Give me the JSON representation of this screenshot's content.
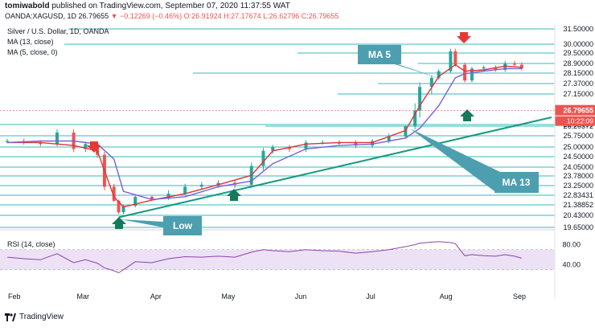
{
  "header": {
    "publisher": "tomiwabold",
    "published_text": "published on TradingView.com, September 07, 2020 11:37:55 WAT",
    "symbol": "OANDA:XAGUSD, 1D",
    "last": "26.79655",
    "change": "▼ −0.12269 (−0.46%)",
    "ohlc": "O:26.91924 H:27.17674 L:26.62796 C:26.79655"
  },
  "legend": {
    "title": "Silver / U.S. Dollar, 1D, OANDA",
    "ma13": "MA (13, close)",
    "ma5": "MA (5, close, 0)",
    "rsi": "RSI (14, close)"
  },
  "annotations": {
    "ma5": "MA 5",
    "ma13": "MA 13",
    "low": "Low"
  },
  "footer": {
    "brand": "TradingView"
  },
  "colors": {
    "grid_line": "#5ec7c9",
    "trend_line": "#159a7e",
    "callout": "#4d9fb0",
    "callout_text": "#ffffff",
    "up_candle": "#26a69a",
    "down_candle": "#ef5350",
    "ma5": "#e0323b",
    "ma13": "#7b5fd6",
    "rsi_line": "#8e44ad",
    "rsi_band": "#ece1f5",
    "price_tag": "#ef5350",
    "arrow_up": "#157a5c",
    "arrow_down": "#e53935"
  },
  "chart_data": {
    "type": "line",
    "title": "Silver / U.S. Dollar, 1D, OANDA",
    "xlabel": "",
    "ylabel": "",
    "x_ticks": [
      "Feb",
      "Mar",
      "Apr",
      "May",
      "Jun",
      "Jul",
      "Aug",
      "Sep"
    ],
    "ylim": [
      19.0,
      31.8
    ],
    "y_ticks": [
      "31.50000",
      "30.00000",
      "29.50000",
      "28.90000",
      "28.15000",
      "27.37000",
      "27.15000",
      "26.50000",
      "26.20372",
      "25.75000",
      "25.00000",
      "24.50000",
      "24.05000",
      "23.78000",
      "23.25000",
      "22.83431",
      "21.38852",
      "20.43000",
      "19.65000"
    ],
    "price_tag": "26.79655",
    "time_tag": "10:22:09",
    "series": [
      {
        "name": "Silver / U.S. Dollar",
        "x": [
          "2020-01-31",
          "2020-02-07",
          "2020-02-14",
          "2020-02-21",
          "2020-02-28",
          "2020-03-04",
          "2020-03-09",
          "2020-03-12",
          "2020-03-16",
          "2020-03-18",
          "2020-03-20",
          "2020-03-25",
          "2020-04-01",
          "2020-04-08",
          "2020-04-15",
          "2020-04-22",
          "2020-04-29",
          "2020-05-06",
          "2020-05-13",
          "2020-05-18",
          "2020-05-22",
          "2020-05-29",
          "2020-06-05",
          "2020-06-12",
          "2020-06-19",
          "2020-06-26",
          "2020-07-03",
          "2020-07-10",
          "2020-07-17",
          "2020-07-21",
          "2020-07-23",
          "2020-07-28",
          "2020-07-31",
          "2020-08-05",
          "2020-08-07",
          "2020-08-11",
          "2020-08-14",
          "2020-08-19",
          "2020-08-24",
          "2020-08-28",
          "2020-09-01",
          "2020-09-04"
        ],
        "values": [
          25.4,
          25.3,
          25.2,
          25.9,
          24.9,
          25.2,
          24.6,
          23.2,
          22.0,
          20.7,
          21.3,
          22.6,
          22.3,
          22.9,
          23.2,
          23.3,
          23.4,
          23.3,
          24.1,
          24.8,
          25.0,
          24.9,
          25.3,
          25.3,
          25.3,
          25.1,
          25.4,
          25.7,
          26.2,
          26.8,
          27.3,
          27.8,
          28.3,
          29.6,
          28.8,
          27.6,
          28.5,
          28.6,
          28.4,
          28.9,
          28.8,
          28.5
        ]
      },
      {
        "name": "MA (5, close, 0)",
        "x": [
          "2020-01-31",
          "2020-02-14",
          "2020-02-28",
          "2020-03-09",
          "2020-03-16",
          "2020-03-20",
          "2020-04-01",
          "2020-04-15",
          "2020-04-29",
          "2020-05-13",
          "2020-05-22",
          "2020-06-05",
          "2020-06-19",
          "2020-07-03",
          "2020-07-17",
          "2020-07-23",
          "2020-07-31",
          "2020-08-07",
          "2020-08-11",
          "2020-08-19",
          "2020-08-28",
          "2020-09-04"
        ],
        "values": [
          25.3,
          25.3,
          25.1,
          24.8,
          22.6,
          21.2,
          22.1,
          22.9,
          23.3,
          23.8,
          24.8,
          25.2,
          25.3,
          25.3,
          26.0,
          26.9,
          27.9,
          28.8,
          28.3,
          28.4,
          28.7,
          28.6
        ]
      },
      {
        "name": "MA (13, close)",
        "x": [
          "2020-01-31",
          "2020-02-14",
          "2020-02-28",
          "2020-03-09",
          "2020-03-16",
          "2020-03-20",
          "2020-04-01",
          "2020-04-15",
          "2020-04-29",
          "2020-05-13",
          "2020-05-22",
          "2020-06-05",
          "2020-06-19",
          "2020-07-03",
          "2020-07-17",
          "2020-07-23",
          "2020-07-31",
          "2020-08-07",
          "2020-08-11",
          "2020-08-19",
          "2020-08-28",
          "2020-09-04"
        ],
        "values": [
          25.3,
          25.4,
          25.4,
          25.2,
          24.4,
          23.0,
          22.2,
          22.6,
          23.2,
          23.5,
          24.2,
          24.9,
          25.1,
          25.2,
          25.6,
          26.1,
          26.9,
          27.8,
          28.1,
          28.3,
          28.5,
          28.5
        ]
      }
    ],
    "rsi": {
      "name": "RSI (14, close)",
      "y_ticks": [
        "80.00",
        "40.00"
      ],
      "ylim": [
        20,
        100
      ],
      "band": [
        30,
        70
      ],
      "x": [
        "2020-01-31",
        "2020-02-07",
        "2020-02-14",
        "2020-02-21",
        "2020-02-28",
        "2020-03-04",
        "2020-03-09",
        "2020-03-12",
        "2020-03-16",
        "2020-03-18",
        "2020-03-20",
        "2020-03-25",
        "2020-04-01",
        "2020-04-08",
        "2020-04-15",
        "2020-04-22",
        "2020-04-29",
        "2020-05-06",
        "2020-05-13",
        "2020-05-18",
        "2020-05-22",
        "2020-05-29",
        "2020-06-05",
        "2020-06-12",
        "2020-06-19",
        "2020-06-26",
        "2020-07-03",
        "2020-07-10",
        "2020-07-17",
        "2020-07-21",
        "2020-07-23",
        "2020-07-28",
        "2020-07-31",
        "2020-08-05",
        "2020-08-07",
        "2020-08-11",
        "2020-08-14",
        "2020-08-19",
        "2020-08-24",
        "2020-08-28",
        "2020-09-01",
        "2020-09-04"
      ],
      "values": [
        55,
        52,
        50,
        62,
        44,
        50,
        43,
        34,
        28,
        24,
        30,
        46,
        44,
        52,
        56,
        55,
        57,
        55,
        65,
        70,
        68,
        66,
        70,
        68,
        67,
        63,
        66,
        70,
        76,
        80,
        83,
        85,
        86,
        84,
        82,
        58,
        60,
        58,
        57,
        60,
        57,
        53
      ]
    }
  }
}
